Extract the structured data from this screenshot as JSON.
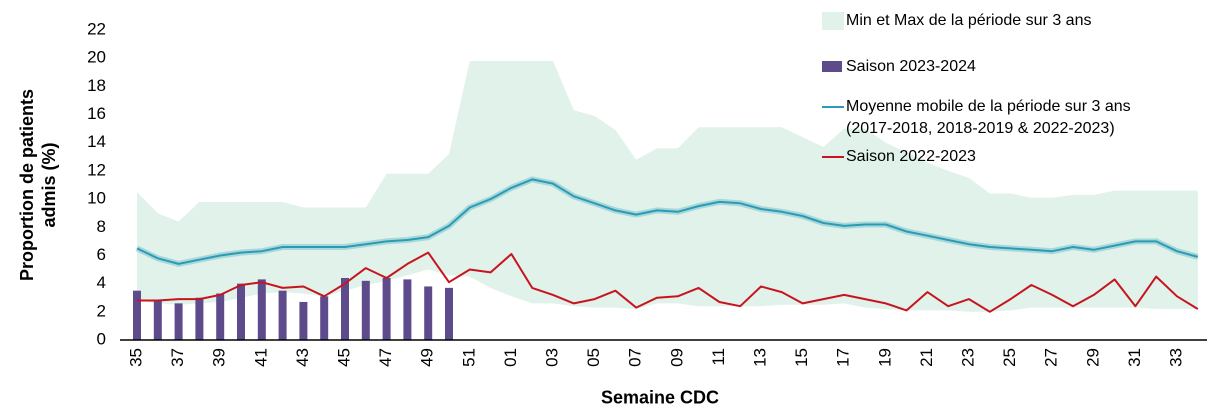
{
  "chart_data": {
    "type": "combo",
    "x_label": "Semaine CDC",
    "y_label": "Proportion de patients\nadmis (%)",
    "categories": [
      "35",
      null,
      "37",
      null,
      "39",
      null,
      "41",
      null,
      "43",
      null,
      "45",
      null,
      "47",
      null,
      "49",
      null,
      "51",
      null,
      "01",
      null,
      "03",
      null,
      "05",
      null,
      "07",
      null,
      "09",
      null,
      "11",
      null,
      "13",
      null,
      "15",
      null,
      "17",
      null,
      "19",
      null,
      "21",
      null,
      "23",
      null,
      "25",
      null,
      "27",
      null,
      "29",
      null,
      "31",
      null,
      "33",
      null
    ],
    "ylim": [
      0,
      22
    ],
    "yticks": [
      0,
      2,
      4,
      6,
      8,
      10,
      12,
      14,
      16,
      18,
      20,
      22
    ],
    "grid": false,
    "legend": "top-right",
    "series": [
      {
        "name": "Min et Max de la période sur 3 ans",
        "type": "band",
        "color": "#e0f2ea",
        "low": [
          2.8,
          2.6,
          2.5,
          2.6,
          2.7,
          3.0,
          3.3,
          3.4,
          3.3,
          3.1,
          3.5,
          3.9,
          4.2,
          4.6,
          5.0,
          4.6,
          4.5,
          3.7,
          3.1,
          2.6,
          2.6,
          2.4,
          2.3,
          2.3,
          2.2,
          2.6,
          2.6,
          2.4,
          2.4,
          2.4,
          2.4,
          2.5,
          2.5,
          2.5,
          2.6,
          2.3,
          2.2,
          2.1,
          2.1,
          2.1,
          2.0,
          2.0,
          2.1,
          2.3,
          2.3,
          2.3,
          2.3,
          2.3,
          2.3,
          2.2,
          2.2,
          2.2
        ],
        "high": [
          10.5,
          9.0,
          8.4,
          9.8,
          9.8,
          9.8,
          9.8,
          9.8,
          9.4,
          9.4,
          9.4,
          9.4,
          11.8,
          11.8,
          11.8,
          13.2,
          19.8,
          19.8,
          19.8,
          19.8,
          19.8,
          16.3,
          15.9,
          14.9,
          12.8,
          13.6,
          13.6,
          15.1,
          15.1,
          15.1,
          15.1,
          15.1,
          14.4,
          13.7,
          15.0,
          15.0,
          14.0,
          13.3,
          12.6,
          12.0,
          11.5,
          10.4,
          10.4,
          10.1,
          10.1,
          10.3,
          10.3,
          10.6,
          10.6,
          10.6,
          10.6,
          10.6
        ]
      },
      {
        "name": "Saison 2023-2024",
        "type": "bar",
        "color": "#5e4b8b",
        "values": [
          3.5,
          2.8,
          2.6,
          3.0,
          3.3,
          4.0,
          4.3,
          3.5,
          2.7,
          3.1,
          4.4,
          4.2,
          4.4,
          4.3,
          3.8,
          3.7,
          null,
          null,
          null,
          null,
          null,
          null,
          null,
          null,
          null,
          null,
          null,
          null,
          null,
          null,
          null,
          null,
          null,
          null,
          null,
          null,
          null,
          null,
          null,
          null,
          null,
          null,
          null,
          null,
          null,
          null,
          null,
          null,
          null,
          null,
          null,
          null
        ]
      },
      {
        "name": "Moyenne mobile de la période sur 3 ans\n(2017-2018, 2018-2019 & 2022-2023)",
        "type": "line",
        "color": "#2b9bb5",
        "values": [
          6.5,
          5.8,
          5.4,
          5.7,
          6.0,
          6.2,
          6.3,
          6.6,
          6.6,
          6.6,
          6.6,
          6.8,
          7.0,
          7.1,
          7.3,
          8.1,
          9.4,
          10.0,
          10.8,
          11.4,
          11.1,
          10.2,
          9.7,
          9.2,
          8.9,
          9.2,
          9.1,
          9.5,
          9.8,
          9.7,
          9.3,
          9.1,
          8.8,
          8.3,
          8.1,
          8.2,
          8.2,
          7.7,
          7.4,
          7.1,
          6.8,
          6.6,
          6.5,
          6.4,
          6.3,
          6.6,
          6.4,
          6.7,
          7.0,
          7.0,
          6.3,
          5.9
        ]
      },
      {
        "name": "Saison 2022-2023",
        "type": "line",
        "color": "#c8141e",
        "values": [
          2.8,
          2.8,
          2.9,
          2.9,
          3.2,
          3.9,
          4.1,
          3.7,
          3.8,
          3.1,
          4.0,
          5.1,
          4.4,
          5.4,
          6.2,
          4.1,
          5.0,
          4.8,
          6.1,
          3.7,
          3.2,
          2.6,
          2.9,
          3.5,
          2.3,
          3.0,
          3.1,
          3.7,
          2.7,
          2.4,
          3.8,
          3.4,
          2.6,
          2.9,
          3.2,
          2.9,
          2.6,
          2.1,
          3.4,
          2.4,
          2.9,
          2.0,
          2.9,
          3.9,
          3.2,
          2.4,
          3.2,
          4.3,
          2.4,
          4.5,
          3.1,
          2.2
        ]
      }
    ]
  }
}
